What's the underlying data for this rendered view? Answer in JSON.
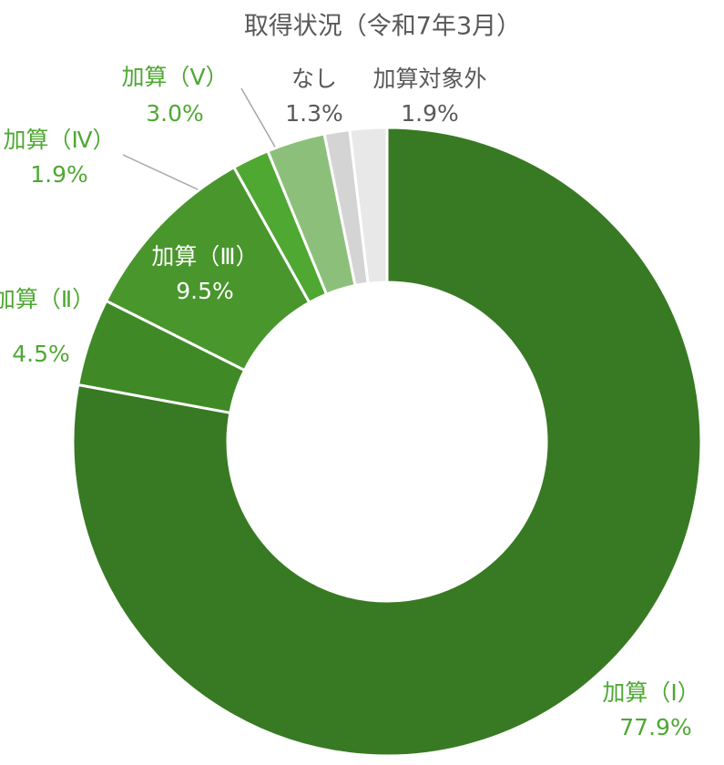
{
  "chart_data": {
    "type": "donut",
    "title": "取得状況（令和7年3月）",
    "categories": [
      "加算（Ⅰ）",
      "加算（Ⅱ）",
      "加算（Ⅲ）",
      "加算（Ⅳ）",
      "加算（Ⅴ）",
      "なし",
      "加算対象外"
    ],
    "values": [
      77.9,
      4.5,
      9.5,
      1.9,
      3.0,
      1.3,
      1.9
    ],
    "value_labels": [
      "77.9%",
      "4.5%",
      "9.5%",
      "1.9%",
      "3.0%",
      "1.3%",
      "1.9%"
    ],
    "colors": [
      "#387a23",
      "#3f8a26",
      "#48962c",
      "#4ea832",
      "#8cc07a",
      "#d4d4d4",
      "#e8e8e8"
    ]
  }
}
